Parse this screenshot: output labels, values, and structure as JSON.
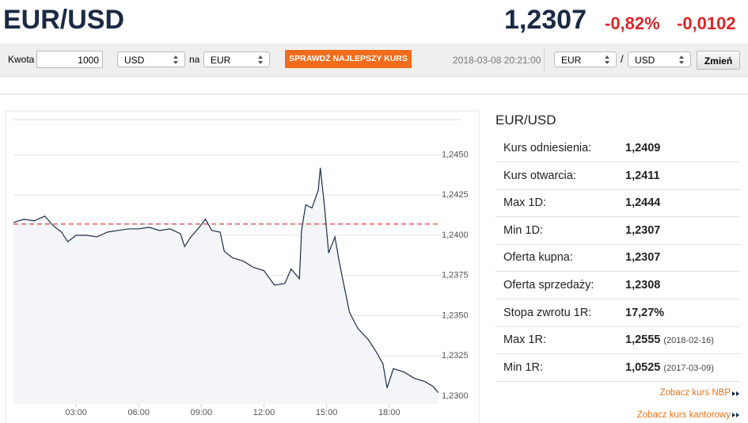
{
  "header": {
    "title": "EUR/USD",
    "rate": "1,2307",
    "change_pct": "-0,82%",
    "change_abs": "-0,0102"
  },
  "toolbar": {
    "amount_label": "Kwota",
    "amount": "1000",
    "from": "USD",
    "conj": "na",
    "to": "EUR",
    "button": "SPRAWDŹ NAJLEPSZY KURS",
    "timestamp": "2018-03-08 20:21:00",
    "pair_base": "EUR",
    "separator": "/",
    "pair_quote": "USD",
    "switch_button": "Zmień"
  },
  "chart_data": {
    "type": "line",
    "color": "#1d2b4a",
    "fill_color": "#f3f5f8",
    "grid": true,
    "x": [
      0,
      0.5,
      1,
      1.5,
      1.9,
      2.3,
      2.6,
      3,
      3.5,
      4,
      4.5,
      5,
      5.5,
      6,
      6.5,
      7,
      7.5,
      8,
      8.2,
      8.5,
      8.9,
      9.2,
      9.5,
      9.9,
      10.1,
      10.5,
      11,
      11.5,
      12,
      12.5,
      13,
      13.3,
      13.7,
      13.8,
      14,
      14.3,
      14.6,
      14.7,
      14.9,
      15.1,
      15.4,
      15.6,
      15.8,
      16.1,
      16.5,
      17,
      17.4,
      17.7,
      17.9,
      18.2,
      18.7,
      19.2,
      19.7,
      20.1,
      20.35
    ],
    "values": [
      1.2408,
      1.241,
      1.2409,
      1.2412,
      1.2406,
      1.2402,
      1.2396,
      1.24,
      1.24,
      1.2399,
      1.2402,
      1.2403,
      1.2404,
      1.2404,
      1.2405,
      1.2403,
      1.2404,
      1.2401,
      1.2393,
      1.2399,
      1.2405,
      1.241,
      1.2403,
      1.2402,
      1.239,
      1.2386,
      1.2384,
      1.238,
      1.2378,
      1.2369,
      1.237,
      1.2379,
      1.2373,
      1.2403,
      1.2419,
      1.2417,
      1.2428,
      1.2442,
      1.2418,
      1.2389,
      1.2399,
      1.2384,
      1.2371,
      1.2352,
      1.2342,
      1.2335,
      1.2327,
      1.232,
      1.2305,
      1.2317,
      1.2315,
      1.2311,
      1.2309,
      1.2306,
      1.2302
    ],
    "xlim": [
      0,
      20.4
    ],
    "ylim": [
      1.2295,
      1.2472
    ],
    "xticks": [
      {
        "value": 3,
        "label": "03:00"
      },
      {
        "value": 6,
        "label": "06:00"
      },
      {
        "value": 9,
        "label": "09:00"
      },
      {
        "value": 12,
        "label": "12:00"
      },
      {
        "value": 15,
        "label": "15:00"
      },
      {
        "value": 18,
        "label": "18:00"
      }
    ],
    "yticks": [
      {
        "value": 1.23,
        "label": "1,2300"
      },
      {
        "value": 1.2325,
        "label": "1,2325"
      },
      {
        "value": 1.235,
        "label": "1,2350"
      },
      {
        "value": 1.2375,
        "label": "1,2375"
      },
      {
        "value": 1.24,
        "label": "1,2400"
      },
      {
        "value": 1.2425,
        "label": "1,2425"
      },
      {
        "value": 1.245,
        "label": "1,2450"
      }
    ],
    "reference_line": 1.2407,
    "reference_color": "#d9534f"
  },
  "stats": {
    "title": "EUR/USD",
    "rows": [
      {
        "label": "Kurs odniesienia:",
        "value": "1,2409"
      },
      {
        "label": "Kurs otwarcia:",
        "value": "1,2411"
      },
      {
        "label": "Max 1D:",
        "value": "1,2444"
      },
      {
        "label": "Min 1D:",
        "value": "1,2307"
      },
      {
        "label": "Oferta kupna:",
        "value": "1,2307"
      },
      {
        "label": "Oferta sprzedaży:",
        "value": "1,2308"
      },
      {
        "label": "Stopa zwrotu 1R:",
        "value": "17,27%"
      },
      {
        "label": "Max 1R:",
        "value": "1,2555",
        "date": "(2018-02-16)"
      },
      {
        "label": "Min 1R:",
        "value": "1,0525",
        "date": "(2017-03-09)"
      }
    ]
  },
  "links": [
    "Zobacz kurs NBP",
    "Zobacz kurs kantorowy"
  ]
}
